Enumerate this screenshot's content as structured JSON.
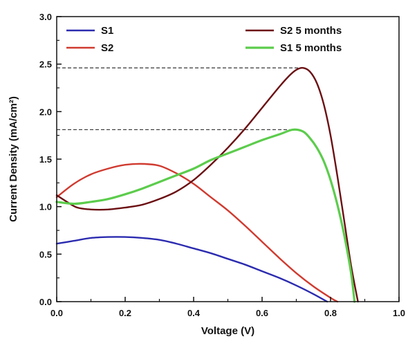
{
  "chart_data": {
    "type": "line",
    "xlabel": "Voltage (V)",
    "ylabel": "Current Density (mA/cm²)",
    "xlim": [
      0.0,
      1.0
    ],
    "ylim": [
      0.0,
      3.0
    ],
    "xticks": [
      "0.0",
      "0.2",
      "0.4",
      "0.6",
      "0.8",
      "1.0"
    ],
    "yticks": [
      "0.0",
      "0.5",
      "1.0",
      "1.5",
      "2.0",
      "2.5",
      "3.0"
    ],
    "grid": false,
    "legend_position": "top",
    "reference_lines": [
      {
        "y": 2.46,
        "x_end": 0.72,
        "style": "dashed"
      },
      {
        "y": 1.81,
        "x_end": 0.69,
        "style": "dashed"
      }
    ],
    "series": [
      {
        "name": "S1",
        "color": "#2b2bb0",
        "x": [
          0.0,
          0.05,
          0.1,
          0.15,
          0.2,
          0.25,
          0.3,
          0.35,
          0.4,
          0.45,
          0.5,
          0.55,
          0.6,
          0.65,
          0.7,
          0.75,
          0.79
        ],
        "y": [
          0.61,
          0.64,
          0.67,
          0.68,
          0.68,
          0.67,
          0.65,
          0.61,
          0.56,
          0.51,
          0.45,
          0.39,
          0.32,
          0.25,
          0.17,
          0.08,
          0.0
        ]
      },
      {
        "name": "S2",
        "color": "#d03a2f",
        "x": [
          0.0,
          0.05,
          0.1,
          0.15,
          0.2,
          0.25,
          0.3,
          0.35,
          0.4,
          0.45,
          0.5,
          0.55,
          0.6,
          0.65,
          0.7,
          0.75,
          0.8,
          0.82
        ],
        "y": [
          1.1,
          1.24,
          1.34,
          1.4,
          1.44,
          1.45,
          1.43,
          1.35,
          1.24,
          1.1,
          0.96,
          0.8,
          0.63,
          0.46,
          0.3,
          0.16,
          0.04,
          0.0
        ]
      },
      {
        "name": "S2 5 months",
        "color": "#6b0f12",
        "x": [
          0.0,
          0.03,
          0.06,
          0.1,
          0.15,
          0.2,
          0.25,
          0.3,
          0.35,
          0.4,
          0.45,
          0.5,
          0.55,
          0.6,
          0.65,
          0.68,
          0.7,
          0.72,
          0.74,
          0.76,
          0.78,
          0.8,
          0.82,
          0.84,
          0.86,
          0.88
        ],
        "y": [
          1.12,
          1.05,
          0.99,
          0.97,
          0.97,
          0.99,
          1.02,
          1.08,
          1.16,
          1.28,
          1.44,
          1.62,
          1.82,
          2.04,
          2.26,
          2.38,
          2.44,
          2.46,
          2.42,
          2.3,
          2.08,
          1.75,
          1.32,
          0.85,
          0.38,
          0.0
        ]
      },
      {
        "name": "S1 5 months",
        "color": "#5ccc4c",
        "x": [
          0.0,
          0.05,
          0.1,
          0.15,
          0.2,
          0.25,
          0.3,
          0.35,
          0.4,
          0.45,
          0.5,
          0.55,
          0.6,
          0.65,
          0.69,
          0.72,
          0.74,
          0.76,
          0.78,
          0.8,
          0.82,
          0.84,
          0.86,
          0.87
        ],
        "y": [
          1.05,
          1.03,
          1.05,
          1.08,
          1.13,
          1.19,
          1.26,
          1.33,
          1.4,
          1.49,
          1.56,
          1.63,
          1.7,
          1.76,
          1.81,
          1.79,
          1.72,
          1.62,
          1.48,
          1.28,
          1.02,
          0.7,
          0.3,
          0.0
        ]
      }
    ]
  }
}
